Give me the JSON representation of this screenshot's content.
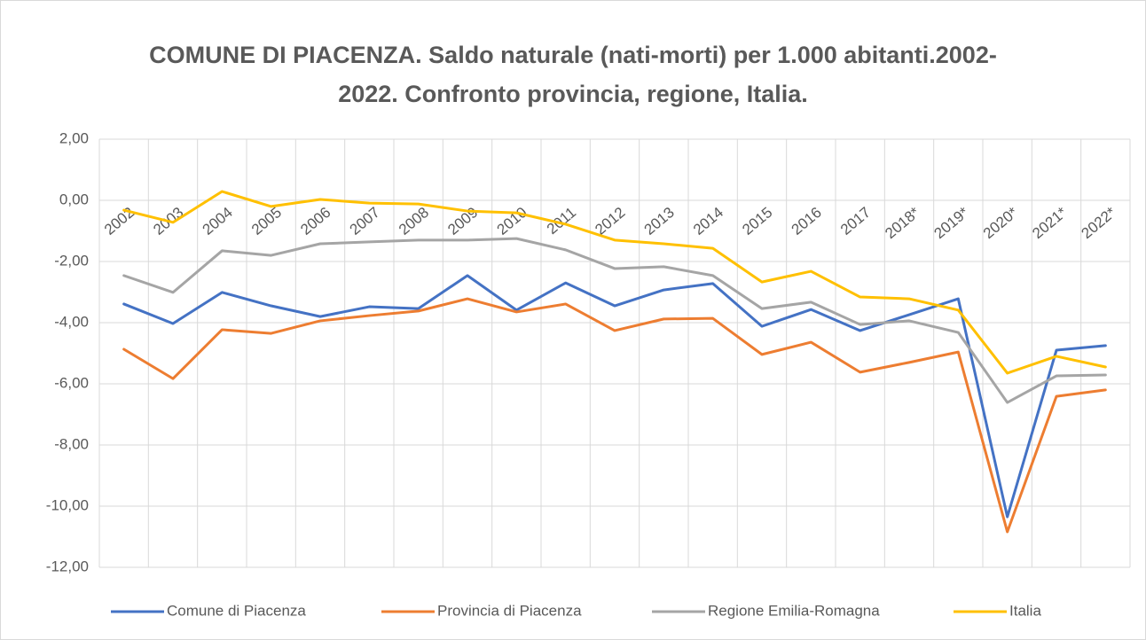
{
  "chart_data": {
    "type": "line",
    "title": "COMUNE DI PIACENZA. Saldo naturale (nati-morti) per 1.000 abitanti.2002-2022. Confronto provincia, regione, Italia.",
    "categories": [
      "2002",
      "2003",
      "2004",
      "2005",
      "2006",
      "2007",
      "2008",
      "2009",
      "2010",
      "2011",
      "2012",
      "2013",
      "2014",
      "2015",
      "2016",
      "2017",
      "2018*",
      "2019*",
      "2020*",
      "2021*",
      "2022*"
    ],
    "series": [
      {
        "name": "Comune di Piacenza",
        "color": "#4472c4",
        "values": [
          -3.39,
          -4.03,
          -3.01,
          -3.45,
          -3.8,
          -3.48,
          -3.54,
          -2.46,
          -3.59,
          -2.7,
          -3.45,
          -2.93,
          -2.72,
          -4.12,
          -3.57,
          -4.26,
          -3.74,
          -3.22,
          -10.35,
          -4.9,
          -4.75
        ]
      },
      {
        "name": "Provincia di Piacenza",
        "color": "#ed7d31",
        "values": [
          -4.87,
          -5.83,
          -4.23,
          -4.35,
          -3.94,
          -3.77,
          -3.62,
          -3.22,
          -3.65,
          -3.39,
          -4.26,
          -3.88,
          -3.86,
          -5.04,
          -4.64,
          -5.62,
          -5.3,
          -4.96,
          -10.84,
          -6.41,
          -6.2
        ]
      },
      {
        "name": "Regione Emilia-Romagna",
        "color": "#a5a5a5",
        "values": [
          -2.46,
          -3.01,
          -1.65,
          -1.8,
          -1.42,
          -1.36,
          -1.3,
          -1.3,
          -1.25,
          -1.62,
          -2.23,
          -2.17,
          -2.46,
          -3.54,
          -3.33,
          -4.06,
          -3.94,
          -4.32,
          -6.61,
          -5.74,
          -5.71
        ]
      },
      {
        "name": "Italia",
        "color": "#ffc000",
        "values": [
          -0.32,
          -0.72,
          0.29,
          -0.2,
          0.03,
          -0.09,
          -0.12,
          -0.35,
          -0.41,
          -0.78,
          -1.3,
          -1.42,
          -1.57,
          -2.67,
          -2.32,
          -3.16,
          -3.22,
          -3.59,
          -5.65,
          -5.1,
          -5.45
        ]
      }
    ],
    "ylim": [
      -12,
      2
    ],
    "yticks": [
      {
        "value": 2,
        "label": "2,00"
      },
      {
        "value": 0,
        "label": "0,00"
      },
      {
        "value": -2,
        "label": "-2,00"
      },
      {
        "value": -4,
        "label": "-4,00"
      },
      {
        "value": -6,
        "label": "-6,00"
      },
      {
        "value": -8,
        "label": "-8,00"
      },
      {
        "value": -10,
        "label": "-10,00"
      },
      {
        "value": -12,
        "label": "-12,00"
      }
    ],
    "grid": true,
    "legend": "bottom"
  }
}
